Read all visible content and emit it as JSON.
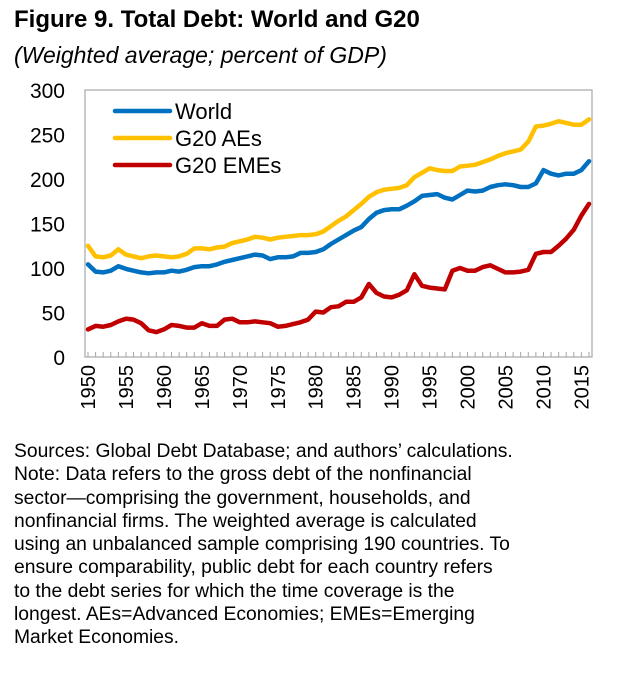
{
  "title": "Figure 9. Total Debt: World and G20",
  "subtitle": "(Weighted average; percent of GDP)",
  "notes": [
    "Sources: Global Debt Database; and authors’ calculations.",
    "Note: Data refers to the gross debt of the nonfinancial",
    "sector—comprising the government, households, and",
    "nonfinancial firms. The weighted average is calculated",
    "using an unbalanced sample comprising 190 countries. To",
    "ensure comparability, public debt for each country refers",
    "to the debt series for which the time coverage is the",
    "longest. AEs=Advanced Economies; EMEs=Emerging",
    "Market Economies."
  ],
  "chart_data": {
    "type": "line",
    "title": "Figure 9. Total Debt: World and G20",
    "subtitle": "(Weighted average; percent of GDP)",
    "xlabel": "",
    "ylabel": "",
    "xlim": [
      1950,
      2016
    ],
    "ylim": [
      0,
      300
    ],
    "yticks": [
      0,
      50,
      100,
      150,
      200,
      250,
      300
    ],
    "xticks": [
      1950,
      1955,
      1960,
      1965,
      1970,
      1975,
      1980,
      1985,
      1990,
      1995,
      2000,
      2005,
      2010,
      2015
    ],
    "grid": false,
    "legend_position": "top-left",
    "series": [
      {
        "name": "World",
        "color": "#0070C0",
        "values": [
          104,
          96,
          95,
          97,
          102,
          99,
          97,
          95,
          94,
          95,
          95,
          97,
          96,
          98,
          101,
          102,
          102,
          104,
          107,
          109,
          111,
          113,
          115,
          114,
          110,
          112,
          112,
          113,
          117,
          117,
          118,
          121,
          127,
          132,
          137,
          142,
          146,
          155,
          162,
          165,
          166,
          166,
          170,
          175,
          181,
          182,
          183,
          179,
          177,
          182,
          187,
          186,
          187,
          191,
          193,
          194,
          193,
          191,
          191,
          195,
          210,
          206,
          204,
          206,
          206,
          210,
          220
        ]
      },
      {
        "name": "G20 AEs",
        "color": "#FFC000",
        "values": [
          125,
          113,
          112,
          114,
          121,
          115,
          113,
          111,
          113,
          114,
          113,
          112,
          113,
          116,
          122,
          122,
          121,
          123,
          124,
          128,
          130,
          132,
          135,
          134,
          132,
          134,
          135,
          136,
          137,
          137,
          138,
          141,
          147,
          153,
          158,
          165,
          172,
          180,
          185,
          188,
          189,
          190,
          193,
          202,
          207,
          212,
          210,
          209,
          209,
          214,
          215,
          216,
          219,
          222,
          226,
          229,
          231,
          233,
          242,
          259,
          260,
          262,
          265,
          263,
          261,
          261,
          267
        ]
      },
      {
        "name": "G20 EMEs",
        "color": "#C00000",
        "values": [
          31,
          35,
          34,
          36,
          40,
          43,
          42,
          38,
          30,
          28,
          31,
          36,
          35,
          33,
          33,
          38,
          35,
          35,
          42,
          43,
          39,
          39,
          40,
          39,
          38,
          34,
          35,
          37,
          39,
          42,
          51,
          50,
          56,
          57,
          62,
          62,
          67,
          82,
          72,
          68,
          67,
          70,
          75,
          93,
          80,
          78,
          77,
          76,
          97,
          100,
          97,
          97,
          101,
          103,
          99,
          95,
          95,
          96,
          98,
          116,
          118,
          118,
          125,
          133,
          143,
          159,
          172
        ]
      }
    ]
  }
}
